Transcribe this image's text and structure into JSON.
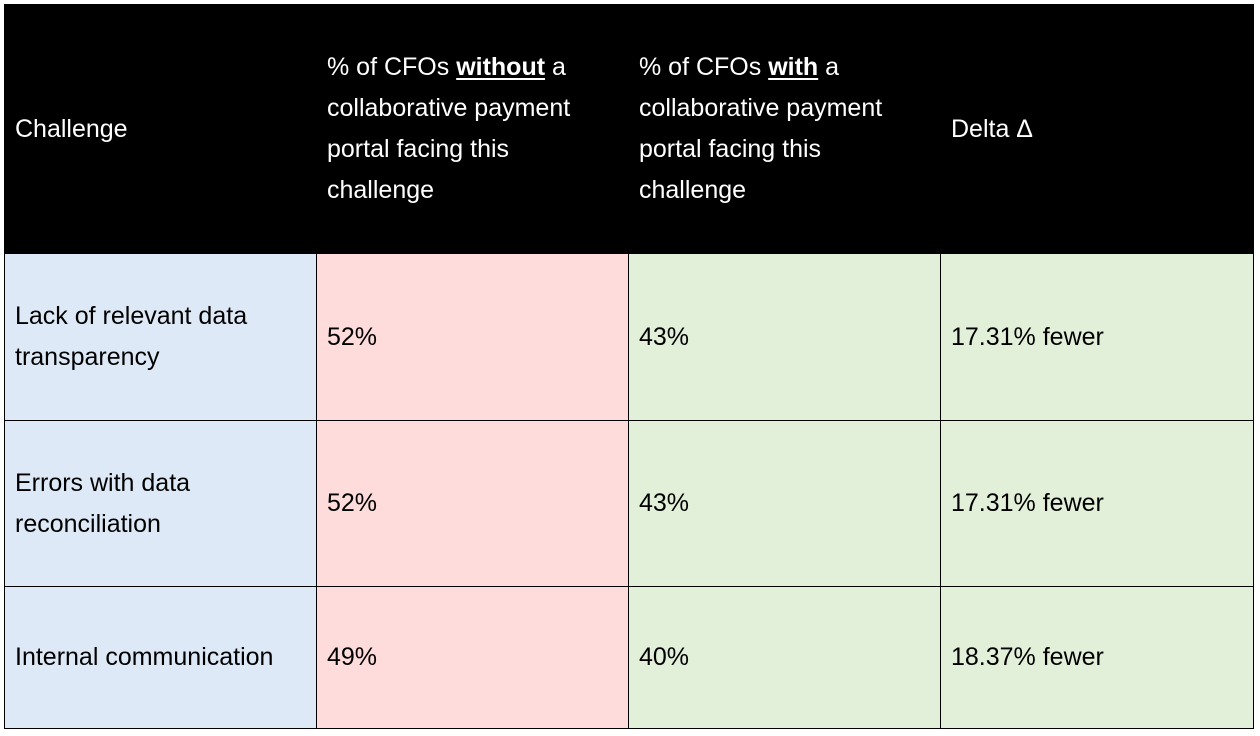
{
  "table": {
    "headers": {
      "challenge": "Challenge",
      "without": {
        "prefix": "% of CFOs ",
        "emphasis": "without",
        "suffix": " a collaborative payment portal facing this challenge"
      },
      "with": {
        "prefix": "% of CFOs ",
        "emphasis": "with",
        "suffix": " a collaborative payment portal facing this challenge"
      },
      "delta": "Delta Δ"
    },
    "rows": [
      {
        "challenge": "Lack of relevant data transparency",
        "without": "52%",
        "with": "43%",
        "delta": "17.31% fewer"
      },
      {
        "challenge": "Errors with data reconciliation",
        "without": "52%",
        "with": "43%",
        "delta": "17.31% fewer"
      },
      {
        "challenge": "Internal communication",
        "without": "49%",
        "with": "40%",
        "delta": "18.37% fewer"
      }
    ]
  },
  "colors": {
    "header_bg": "#000000",
    "header_text": "#ffffff",
    "challenge_bg": "#dde9f6",
    "without_bg": "#fddcdb",
    "with_bg": "#e2efd9",
    "delta_bg": "#e2efd9"
  }
}
